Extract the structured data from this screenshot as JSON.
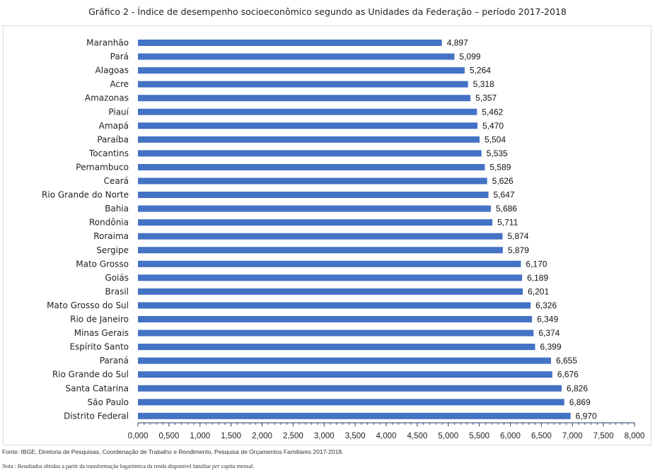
{
  "title": "Gráfico 2 -  Índice de desempenho socioeconômico segundo as Unidades da Federação – período 2017-2018",
  "source": "Fonte: IBGE, Diretoria de Pesquisas, Coordenação de Trabalho e Rendimento, Pesquisa de Orçamentos Familiares 2017-2018.",
  "note_prefix": "Nota : Resultados obtidos a partir da transformação logarítmica da renda disponível familiar ",
  "note_italic": "per capita",
  "note_suffix": " mensal.",
  "colors": {
    "bar": "#4472c4",
    "axis": "#1f3864"
  },
  "chart_data": {
    "type": "bar",
    "orientation": "horizontal",
    "categories": [
      "Maranhão",
      "Pará",
      "Alagoas",
      "Acre",
      "Amazonas",
      "Piauí",
      "Amapá",
      "Paraíba",
      "Tocantins",
      "Pernambuco",
      "Ceará",
      "Rio Grande do Norte",
      "Bahia",
      "Rondônia",
      "Roraima",
      "Sergipe",
      "Mato Grosso",
      "Goiás",
      "Brasil",
      "Mato Grosso do Sul",
      "Rio de Janeiro",
      "Minas Gerais",
      "Espírito Santo",
      "Paraná",
      "Rio Grande do Sul",
      "Santa Catarina",
      "São Paulo",
      "Distrito Federal"
    ],
    "values": [
      4.897,
      5.099,
      5.264,
      5.318,
      5.357,
      5.462,
      5.47,
      5.504,
      5.535,
      5.589,
      5.626,
      5.647,
      5.686,
      5.711,
      5.874,
      5.879,
      6.17,
      6.189,
      6.201,
      6.326,
      6.349,
      6.374,
      6.399,
      6.655,
      6.676,
      6.826,
      6.869,
      6.97
    ],
    "value_labels": [
      "4,897",
      "5,099",
      "5,264",
      "5,318",
      "5,357",
      "5,462",
      "5,470",
      "5,504",
      "5,535",
      "5,589",
      "5,626",
      "5,647",
      "5,686",
      "5,711",
      "5,874",
      "5,879",
      "6,170",
      "6,189",
      "6,201",
      "6,326",
      "6,349",
      "6,374",
      "6,399",
      "6,655",
      "6,676",
      "6,826",
      "6,869",
      "6,970"
    ],
    "xlim": [
      0,
      8
    ],
    "x_ticks": [
      0,
      0.5,
      1,
      1.5,
      2,
      2.5,
      3,
      3.5,
      4,
      4.5,
      5,
      5.5,
      6,
      6.5,
      7,
      7.5,
      8
    ],
    "x_tick_labels": [
      "0,000",
      "0,500",
      "1,000",
      "1,500",
      "2,000",
      "2,500",
      "3,000",
      "3,500",
      "4,000",
      "4,500",
      "5,000",
      "5,500",
      "6,000",
      "6,500",
      "7,000",
      "7,500",
      "8,000"
    ],
    "grid": false,
    "legend": "none"
  }
}
